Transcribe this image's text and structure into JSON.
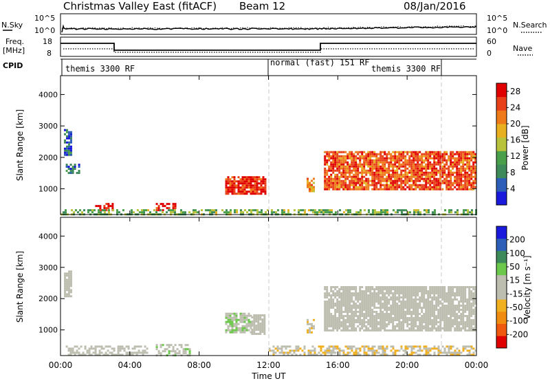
{
  "header": {
    "title": "Christmas Valley East (fitACF)",
    "beam": "Beam 12",
    "date": "08/Jan/2016"
  },
  "nsky_panel": {
    "left_label": "N.Sky",
    "right_label": "N.Search",
    "ticks_left": [
      "10^5",
      "10^0"
    ],
    "ticks_right": [
      "10^5",
      "10^0"
    ]
  },
  "freq_panel": {
    "left_label_1": "Freq.",
    "left_label_2": "[MHz]",
    "right_label": "Nave",
    "ticks_left": [
      "18",
      "8"
    ],
    "ticks_right": [
      "60",
      "0"
    ]
  },
  "cpid": {
    "label": "CPID",
    "segments": [
      "themis 3300 RF",
      "normal (fast) 151 RF",
      "themis 3300 RF"
    ]
  },
  "colors": {
    "power_scale": [
      "#1a1adc",
      "#2e5fb8",
      "#3f8a5a",
      "#4aa04a",
      "#b8c23a",
      "#e8b020",
      "#ef7a1a",
      "#e84018",
      "#e00000"
    ],
    "velocity_scale": [
      "#e00000",
      "#ef5a10",
      "#f08c10",
      "#f0b020",
      "#bdbdb0",
      "#bdbdb0",
      "#6cc84a",
      "#3f8a5a",
      "#2e5fb8",
      "#1a1adc"
    ]
  },
  "chart_data": [
    {
      "type": "heatmap",
      "title": "",
      "xlabel": "Time UT",
      "ylabel": "Slant Range [km]",
      "x_ticks": [
        "00:00",
        "04:00",
        "08:00",
        "12:00",
        "16:00",
        "20:00",
        "00:00"
      ],
      "x_range_hours": [
        0,
        24
      ],
      "y_ticks": [
        "1000",
        "2000",
        "3000",
        "4000"
      ],
      "ylim": [
        180,
        4600
      ],
      "colorbar": {
        "label": "Power [dB]",
        "ticks": [
          "4",
          "8",
          "12",
          "16",
          "20",
          "24",
          "28"
        ],
        "range": [
          0,
          30
        ]
      },
      "echo_regions": [
        {
          "t0": 2.0,
          "t1": 3.0,
          "r0": 350,
          "r1": 550,
          "value": 27
        },
        {
          "t0": 5.5,
          "t1": 6.8,
          "r0": 300,
          "r1": 550,
          "value": 28
        },
        {
          "t0": 9.5,
          "t1": 11.8,
          "r0": 850,
          "r1": 1400,
          "value": 27
        },
        {
          "t0": 14.2,
          "t1": 14.6,
          "r0": 950,
          "r1": 1350,
          "value": 20
        },
        {
          "t0": 15.2,
          "t1": 23.9,
          "r0": 1000,
          "r1": 2200,
          "value": 24
        },
        {
          "t0": 0.0,
          "t1": 24.0,
          "r0": 200,
          "r1": 350,
          "value": 12
        },
        {
          "t0": 0.2,
          "t1": 0.6,
          "r0": 2100,
          "r1": 2900,
          "value": 6
        },
        {
          "t0": 0.3,
          "t1": 1.1,
          "r0": 1500,
          "r1": 1800,
          "value": 6
        }
      ]
    },
    {
      "type": "heatmap",
      "title": "",
      "xlabel": "Time UT",
      "ylabel": "Slant Range [km]",
      "x_ticks": [
        "00:00",
        "04:00",
        "08:00",
        "12:00",
        "16:00",
        "20:00",
        "00:00"
      ],
      "x_range_hours": [
        0,
        24
      ],
      "y_ticks": [
        "1000",
        "2000",
        "3000",
        "4000"
      ],
      "ylim": [
        180,
        4600
      ],
      "colorbar": {
        "label": "Velocity [m s⁻¹]",
        "ticks": [
          "-200",
          "-100",
          "-50",
          "-15",
          "15",
          "50",
          "100",
          "200"
        ],
        "range": [
          -250,
          250
        ]
      },
      "echo_regions": [
        {
          "t0": 0.3,
          "t1": 5.0,
          "r0": 200,
          "r1": 500,
          "value": 0
        },
        {
          "t0": 5.5,
          "t1": 7.5,
          "r0": 200,
          "r1": 550,
          "value": 30
        },
        {
          "t0": 9.5,
          "t1": 11.0,
          "r0": 900,
          "r1": 1550,
          "value": 40
        },
        {
          "t0": 11.0,
          "t1": 11.8,
          "r0": 900,
          "r1": 1500,
          "value": 0
        },
        {
          "t0": 14.2,
          "t1": 14.6,
          "r0": 950,
          "r1": 1350,
          "value": -40
        },
        {
          "t0": 15.2,
          "t1": 23.9,
          "r0": 1000,
          "r1": 2400,
          "value": 0
        },
        {
          "t0": 12.0,
          "t1": 24.0,
          "r0": 200,
          "r1": 500,
          "value": -40
        },
        {
          "t0": 0.2,
          "t1": 0.6,
          "r0": 2100,
          "r1": 2900,
          "value": 0
        }
      ]
    }
  ]
}
